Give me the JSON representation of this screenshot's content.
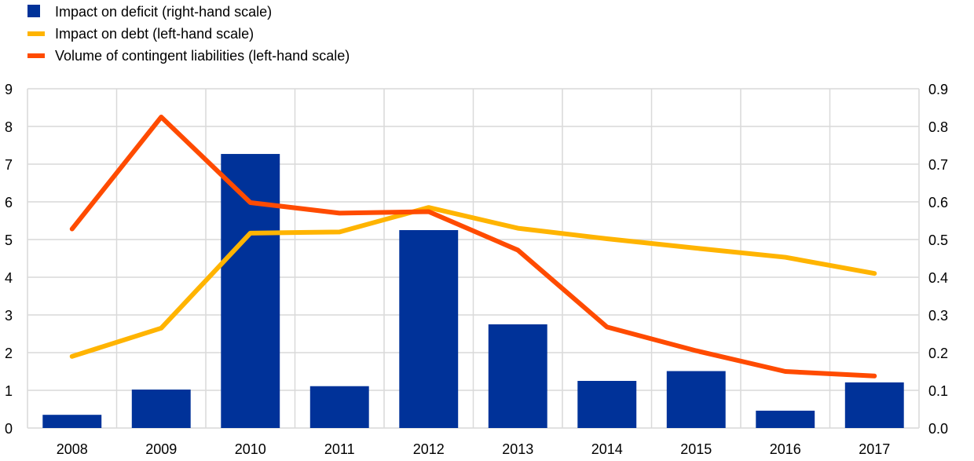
{
  "chart_data": {
    "type": "bar+line",
    "categories": [
      "2008",
      "2009",
      "2010",
      "2011",
      "2012",
      "2013",
      "2014",
      "2015",
      "2016",
      "2017"
    ],
    "left_axis": {
      "range": [
        0,
        9
      ],
      "ticks": [
        "0",
        "1",
        "2",
        "3",
        "4",
        "5",
        "6",
        "7",
        "8",
        "9"
      ]
    },
    "right_axis": {
      "range": [
        0,
        0.9
      ],
      "ticks": [
        "0.0",
        "0.1",
        "0.2",
        "0.3",
        "0.4",
        "0.5",
        "0.6",
        "0.7",
        "0.8",
        "0.9"
      ]
    },
    "series": [
      {
        "name": "Impact on deficit (right-hand scale)",
        "kind": "bar",
        "axis": "right",
        "color": "#003299",
        "values": [
          0.035,
          0.102,
          0.727,
          0.111,
          0.525,
          0.275,
          0.125,
          0.151,
          0.046,
          0.121
        ]
      },
      {
        "name": "Impact on debt (left-hand scale)",
        "kind": "line",
        "axis": "left",
        "color": "#FFB400",
        "values": [
          1.9,
          2.65,
          5.17,
          5.2,
          5.85,
          5.3,
          5.02,
          4.77,
          4.53,
          4.1
        ]
      },
      {
        "name": "Volume of contingent liabilities (left-hand scale)",
        "kind": "line",
        "axis": "left",
        "color": "#FF4B00",
        "values": [
          5.28,
          8.25,
          5.98,
          5.7,
          5.74,
          4.72,
          2.68,
          2.05,
          1.5,
          1.38
        ]
      }
    ],
    "grid": {
      "vertical": true,
      "horizontal": true,
      "color": "#d9d9d9"
    },
    "legend_placement": "top-left"
  }
}
